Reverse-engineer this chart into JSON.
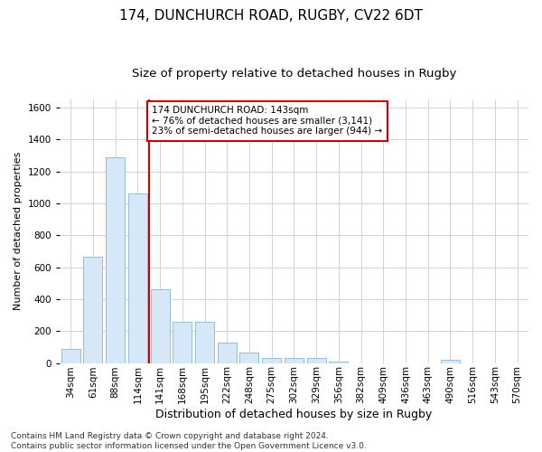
{
  "title1": "174, DUNCHURCH ROAD, RUGBY, CV22 6DT",
  "title2": "Size of property relative to detached houses in Rugby",
  "xlabel": "Distribution of detached houses by size in Rugby",
  "ylabel": "Number of detached properties",
  "categories": [
    "34sqm",
    "61sqm",
    "88sqm",
    "114sqm",
    "141sqm",
    "168sqm",
    "195sqm",
    "222sqm",
    "248sqm",
    "275sqm",
    "302sqm",
    "329sqm",
    "356sqm",
    "382sqm",
    "409sqm",
    "436sqm",
    "463sqm",
    "490sqm",
    "516sqm",
    "543sqm",
    "570sqm"
  ],
  "values": [
    90,
    665,
    1290,
    1060,
    460,
    260,
    260,
    125,
    65,
    30,
    30,
    30,
    10,
    0,
    0,
    0,
    0,
    20,
    0,
    0,
    0
  ],
  "bar_color": "#d6e8f7",
  "bar_edge_color": "#8ab4d4",
  "vline_color": "#cc0000",
  "vline_x_index": 3.5,
  "annotation_text": "174 DUNCHURCH ROAD: 143sqm\n← 76% of detached houses are smaller (3,141)\n23% of semi-detached houses are larger (944) →",
  "annotation_box_color": "#ffffff",
  "annotation_box_edge": "#cc0000",
  "ylim": [
    0,
    1650
  ],
  "yticks": [
    0,
    200,
    400,
    600,
    800,
    1000,
    1200,
    1400,
    1600
  ],
  "grid_color": "#cccccc",
  "background_color": "#ffffff",
  "footer": "Contains HM Land Registry data © Crown copyright and database right 2024.\nContains public sector information licensed under the Open Government Licence v3.0.",
  "title1_fontsize": 11,
  "title2_fontsize": 9.5,
  "xlabel_fontsize": 9,
  "ylabel_fontsize": 8,
  "tick_fontsize": 7.5,
  "annotation_fontsize": 7.5,
  "footer_fontsize": 6.5
}
